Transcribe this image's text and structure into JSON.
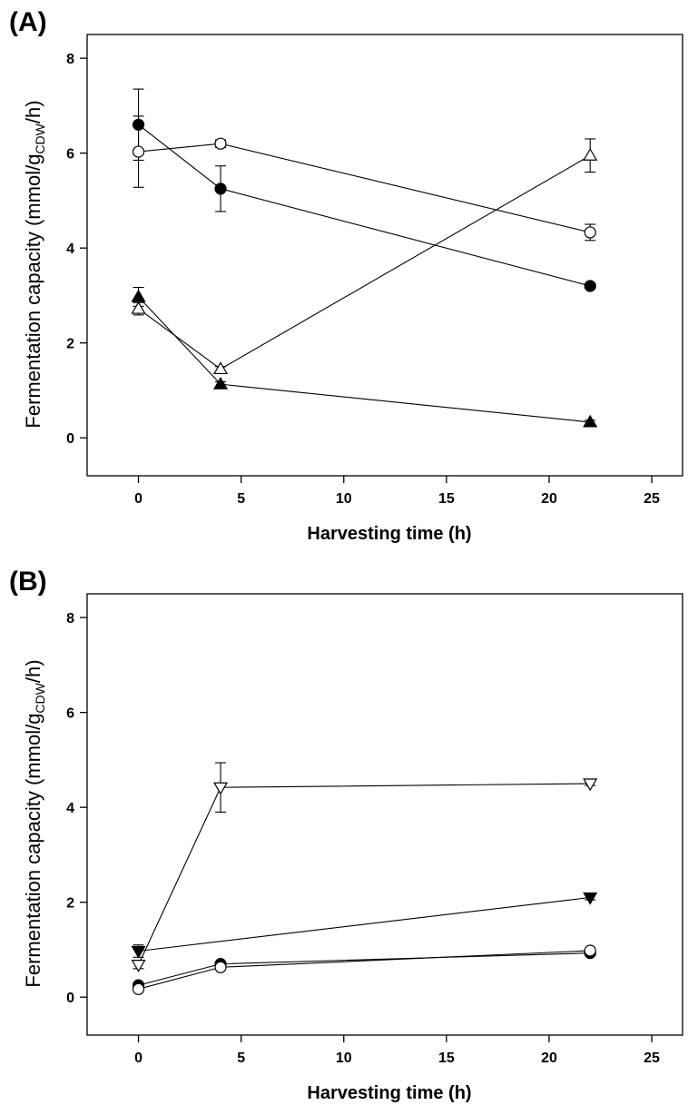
{
  "chart_data": [
    {
      "type": "line",
      "panel_label": "(A)",
      "xlabel": "Harvesting time (h)",
      "ylabel_main": "Fermentation capacity (mmol/g",
      "ylabel_sub": "CDW",
      "ylabel_end": "/h)",
      "xlim": [
        -2.5,
        26.5
      ],
      "ylim": [
        -0.8,
        8.5
      ],
      "xticks": [
        0,
        5,
        10,
        15,
        20,
        25
      ],
      "yticks": [
        0,
        2,
        4,
        6,
        8
      ],
      "series": [
        {
          "marker": "circle",
          "fill": "black",
          "x": [
            0,
            4,
            22
          ],
          "y": [
            6.6,
            5.25,
            3.2
          ],
          "err": [
            0.75,
            0.48,
            0.05
          ]
        },
        {
          "marker": "circle",
          "fill": "white",
          "x": [
            0,
            4,
            22
          ],
          "y": [
            6.03,
            6.2,
            4.33
          ],
          "err": [
            0.75,
            0.08,
            0.17
          ]
        },
        {
          "marker": "triangle-up",
          "fill": "black",
          "x": [
            0,
            4,
            22
          ],
          "y": [
            2.97,
            1.13,
            0.33
          ],
          "err": [
            0.2,
            0.05,
            0.04
          ]
        },
        {
          "marker": "triangle-up",
          "fill": "white",
          "x": [
            0,
            4,
            22
          ],
          "y": [
            2.72,
            1.45,
            5.95
          ],
          "err": [
            0.13,
            0.05,
            0.35
          ]
        }
      ]
    },
    {
      "type": "line",
      "panel_label": "(B)",
      "xlabel": "Harvesting time (h)",
      "ylabel_main": "Fermentation capacity (mmol/g",
      "ylabel_sub": "CDW",
      "ylabel_end": "/h)",
      "xlim": [
        -2.5,
        26.5
      ],
      "ylim": [
        -0.8,
        8.5
      ],
      "xticks": [
        0,
        5,
        10,
        15,
        20,
        25
      ],
      "yticks": [
        0,
        2,
        4,
        6,
        8
      ],
      "series": [
        {
          "marker": "triangle-down",
          "fill": "white",
          "x": [
            0,
            4,
            22
          ],
          "y": [
            0.68,
            4.42,
            4.5
          ],
          "err": [
            0.08,
            0.52,
            0.04
          ]
        },
        {
          "marker": "triangle-down",
          "fill": "black",
          "x": [
            0,
            4,
            22
          ],
          "y": [
            0.97,
            null,
            2.1
          ],
          "err": [
            0.13,
            0,
            0.05
          ]
        },
        {
          "marker": "circle",
          "fill": "black",
          "x": [
            0,
            4,
            22
          ],
          "y": [
            0.25,
            0.7,
            0.93
          ],
          "err": [
            0.04,
            0.04,
            0.04
          ]
        },
        {
          "marker": "circle",
          "fill": "white",
          "x": [
            0,
            4,
            22
          ],
          "y": [
            0.17,
            0.63,
            0.98
          ],
          "err": [
            0.03,
            0.04,
            0.04
          ]
        }
      ]
    }
  ]
}
